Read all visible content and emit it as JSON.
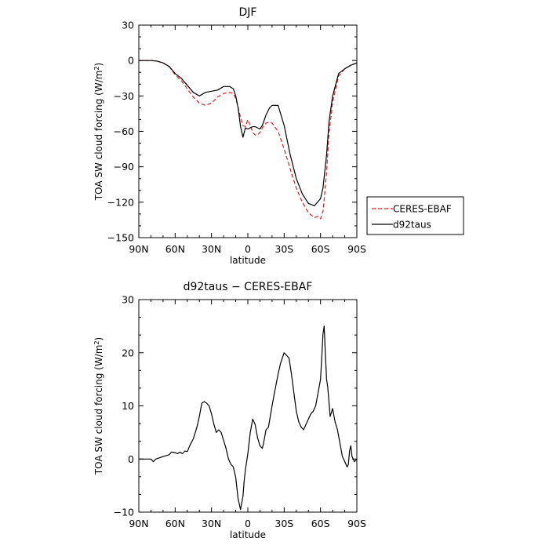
{
  "chart_data": [
    {
      "type": "line",
      "title": "DJF",
      "xlabel": "latitude",
      "ylabel": "TOA SW cloud forcing (W/m²)",
      "ylabel_parts": {
        "base": "TOA SW cloud forcing (W/m",
        "sup": "2",
        "close": ")"
      },
      "xlim": [
        -90,
        90
      ],
      "ylim": [
        -150,
        30
      ],
      "x_ticks": [
        -90,
        -60,
        -30,
        0,
        30,
        60,
        90
      ],
      "x_tick_labels": [
        "90N",
        "60N",
        "30N",
        "0",
        "30S",
        "60S",
        "90S"
      ],
      "y_ticks": [
        30,
        0,
        -30,
        -60,
        -90,
        -120,
        -150
      ],
      "y_tick_labels": [
        "30",
        "0",
        "−30",
        "−60",
        "−90",
        "−120",
        "−150"
      ],
      "legend": "right",
      "series": [
        {
          "name": "CERES-EBAF",
          "color": "#e41a1c",
          "dash": "dashed",
          "x": [
            -90,
            -80,
            -75,
            -70,
            -65,
            -60,
            -55,
            -50,
            -45,
            -40,
            -35,
            -30,
            -25,
            -20,
            -15,
            -12,
            -10,
            -8,
            -6,
            -4,
            -2,
            0,
            2,
            4,
            6,
            8,
            10,
            12,
            15,
            18,
            20,
            25,
            30,
            35,
            40,
            45,
            50,
            55,
            58,
            60,
            62,
            63,
            65,
            67,
            70,
            75,
            80,
            85,
            90
          ],
          "y": [
            0,
            0,
            -0.5,
            -2,
            -5,
            -12,
            -17,
            -24,
            -31,
            -36,
            -38,
            -36,
            -31,
            -28,
            -27,
            -28,
            -32,
            -40,
            -48,
            -55,
            -56,
            -50,
            -55,
            -61,
            -63,
            -63,
            -61,
            -57,
            -53,
            -52,
            -53,
            -60,
            -75,
            -92,
            -108,
            -120,
            -129,
            -133,
            -132,
            -134,
            -128,
            -118,
            -95,
            -62,
            -35,
            -13,
            -7,
            -4,
            -2
          ]
        },
        {
          "name": "d92taus",
          "color": "#000000",
          "dash": "solid",
          "x": [
            -90,
            -80,
            -75,
            -70,
            -65,
            -60,
            -55,
            -50,
            -45,
            -40,
            -35,
            -30,
            -25,
            -20,
            -15,
            -12,
            -10,
            -8,
            -6,
            -4,
            -2,
            0,
            2,
            4,
            6,
            8,
            10,
            12,
            15,
            18,
            20,
            25,
            30,
            35,
            40,
            45,
            50,
            55,
            60,
            62,
            65,
            67,
            70,
            75,
            80,
            85,
            90
          ],
          "y": [
            0,
            0,
            -0.5,
            -2,
            -5,
            -11,
            -15,
            -21,
            -27,
            -30,
            -27,
            -26,
            -25,
            -22,
            -22,
            -24,
            -30,
            -40,
            -56,
            -65,
            -57,
            -58,
            -57,
            -56,
            -56,
            -57,
            -58,
            -55,
            -46,
            -40,
            -38,
            -38,
            -55,
            -80,
            -100,
            -113,
            -121,
            -123,
            -117,
            -108,
            -80,
            -52,
            -30,
            -11,
            -7,
            -4,
            -2
          ]
        }
      ]
    },
    {
      "type": "line",
      "title": "d92taus − CERES-EBAF",
      "xlabel": "latitude",
      "ylabel": "TOA SW cloud forcing (W/m²)",
      "ylabel_parts": {
        "base": "TOA SW cloud forcing (W/m",
        "sup": "2",
        "close": ")"
      },
      "xlim": [
        -90,
        90
      ],
      "ylim": [
        -10,
        30
      ],
      "x_ticks": [
        -90,
        -60,
        -30,
        0,
        30,
        60,
        90
      ],
      "x_tick_labels": [
        "90N",
        "60N",
        "30N",
        "0",
        "30S",
        "60S",
        "90S"
      ],
      "y_ticks": [
        30,
        20,
        10,
        0,
        -10
      ],
      "y_tick_labels": [
        "30",
        "20",
        "10",
        "0",
        "−10"
      ],
      "series": [
        {
          "color": "#000000",
          "dash": "solid",
          "x": [
            -90,
            -80,
            -78,
            -76,
            -72,
            -68,
            -65,
            -63,
            -60,
            -58,
            -56,
            -54,
            -52,
            -50,
            -48,
            -45,
            -42,
            -40,
            -38,
            -36,
            -34,
            -32,
            -30,
            -28,
            -26,
            -24,
            -22,
            -20,
            -18,
            -16,
            -14,
            -12,
            -10,
            -8,
            -6,
            -4,
            -3,
            -2,
            0,
            2,
            4,
            6,
            8,
            10,
            12,
            13,
            15,
            17,
            20,
            22,
            25,
            27,
            30,
            32,
            34,
            36,
            38,
            40,
            42,
            44,
            46,
            48,
            50,
            52,
            54,
            56,
            58,
            60,
            61,
            62,
            63,
            64,
            65,
            66,
            68,
            70,
            72,
            74,
            76,
            78,
            80,
            82,
            83,
            84,
            85,
            86,
            88,
            90
          ],
          "y": [
            0,
            0,
            -0.5,
            0,
            0.3,
            0.6,
            0.8,
            1.3,
            1.2,
            1.0,
            1.3,
            1.0,
            1.5,
            1.4,
            2.5,
            3.8,
            6.0,
            8.0,
            10.5,
            10.8,
            10.5,
            10.0,
            8.5,
            6.5,
            5.0,
            5.5,
            5.0,
            3.5,
            2.0,
            0,
            -1.0,
            -1.5,
            -3.5,
            -7.5,
            -9.5,
            -7.0,
            -4.0,
            -2.0,
            1.0,
            5.0,
            7.5,
            6.5,
            4.0,
            2.5,
            2.0,
            3.0,
            5.5,
            6.0,
            10.0,
            12.5,
            16.0,
            18.0,
            20.0,
            19.5,
            19.0,
            16.0,
            12.5,
            9.0,
            7.0,
            6.0,
            5.5,
            6.5,
            7.5,
            8.5,
            9.0,
            10.0,
            12.5,
            15.0,
            19.0,
            23.5,
            25.0,
            20.0,
            15.0,
            13.5,
            8.0,
            9.5,
            7.0,
            5.5,
            3.0,
            0.5,
            -0.5,
            -1.5,
            -1.0,
            1.5,
            2.5,
            0.5,
            -0.5,
            0
          ]
        }
      ]
    }
  ]
}
